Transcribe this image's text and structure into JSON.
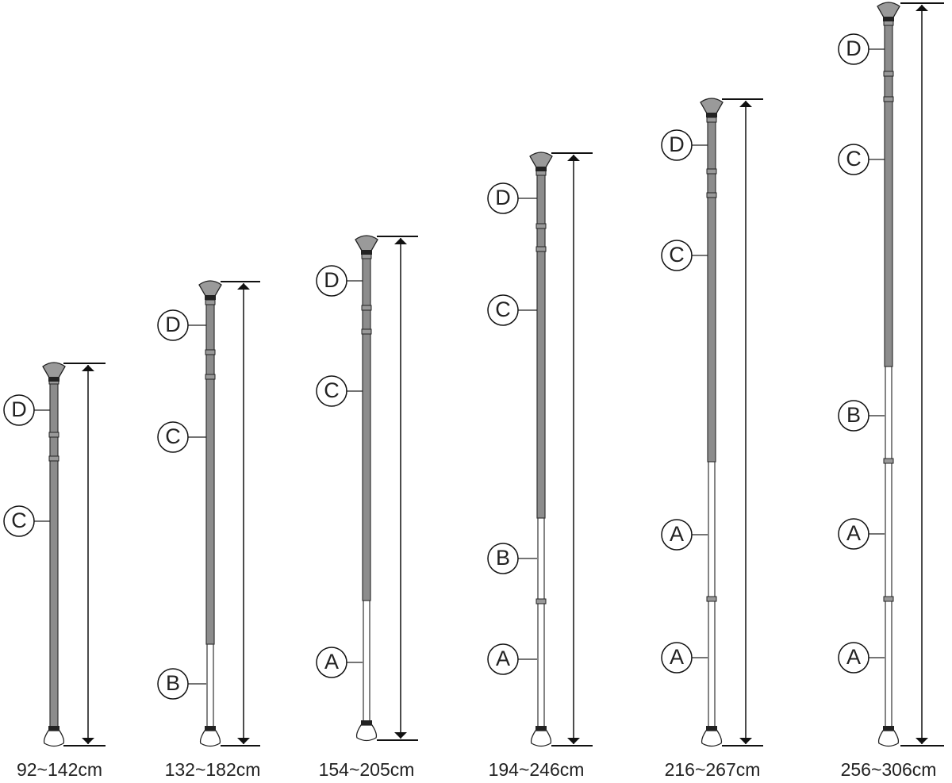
{
  "poles": [
    {
      "range": "92~142cm",
      "labels": [
        "D",
        "C"
      ]
    },
    {
      "range": "132~182cm",
      "labels": [
        "D",
        "C",
        "B"
      ]
    },
    {
      "range": "154~205cm",
      "labels": [
        "D",
        "C",
        "A"
      ]
    },
    {
      "range": "194~246cm",
      "labels": [
        "D",
        "C",
        "B",
        "A"
      ]
    },
    {
      "range": "216~267cm",
      "labels": [
        "D",
        "C",
        "A",
        "A"
      ]
    },
    {
      "range": "256~306cm",
      "labels": [
        "D",
        "C",
        "B",
        "A",
        "A"
      ]
    }
  ]
}
